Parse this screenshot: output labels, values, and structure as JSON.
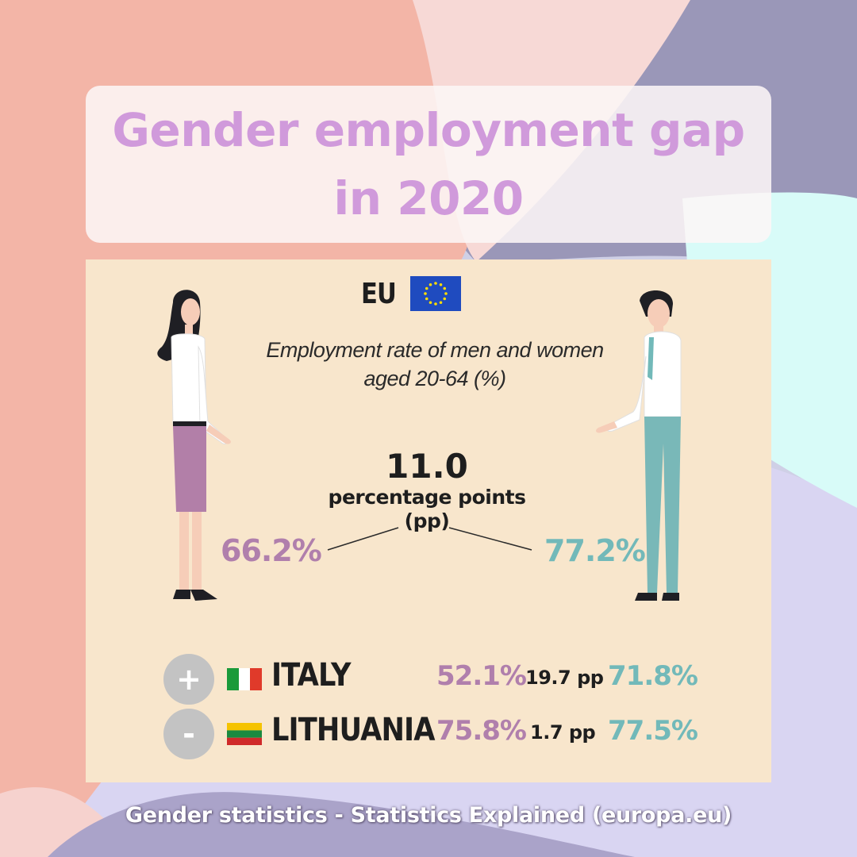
{
  "title": {
    "line1": "Gender employment gap",
    "line2": "in 2020"
  },
  "eu": {
    "label": "EU",
    "subtitle_line1": "Employment rate of men and women",
    "subtitle_line2": "aged 20-64 (%)",
    "gap_value": "11.0",
    "gap_unit_line1": "percentage points",
    "gap_unit_line2": "(pp)",
    "women_rate": "66.2%",
    "men_rate": "77.2%"
  },
  "countries": [
    {
      "sign": "+",
      "name": "ITALY",
      "women_rate": "52.1%",
      "gap": "19.7 pp",
      "men_rate": "71.8%"
    },
    {
      "sign": "-",
      "name": "LITHUANIA",
      "women_rate": "75.8%",
      "gap": "1.7 pp",
      "men_rate": "77.5%"
    }
  ],
  "source": "Gender statistics - Statistics Explained (europa.eu)",
  "colors": {
    "title": "#d09adb",
    "women": "#b07fac",
    "men": "#72b9b9",
    "panel": "#f8e6cc"
  },
  "icons": {
    "woman": "woman-figure-icon",
    "man": "man-figure-icon",
    "eu_flag": "eu-flag-icon",
    "italy_flag": "italy-flag-icon",
    "lithuania_flag": "lithuania-flag-icon"
  }
}
